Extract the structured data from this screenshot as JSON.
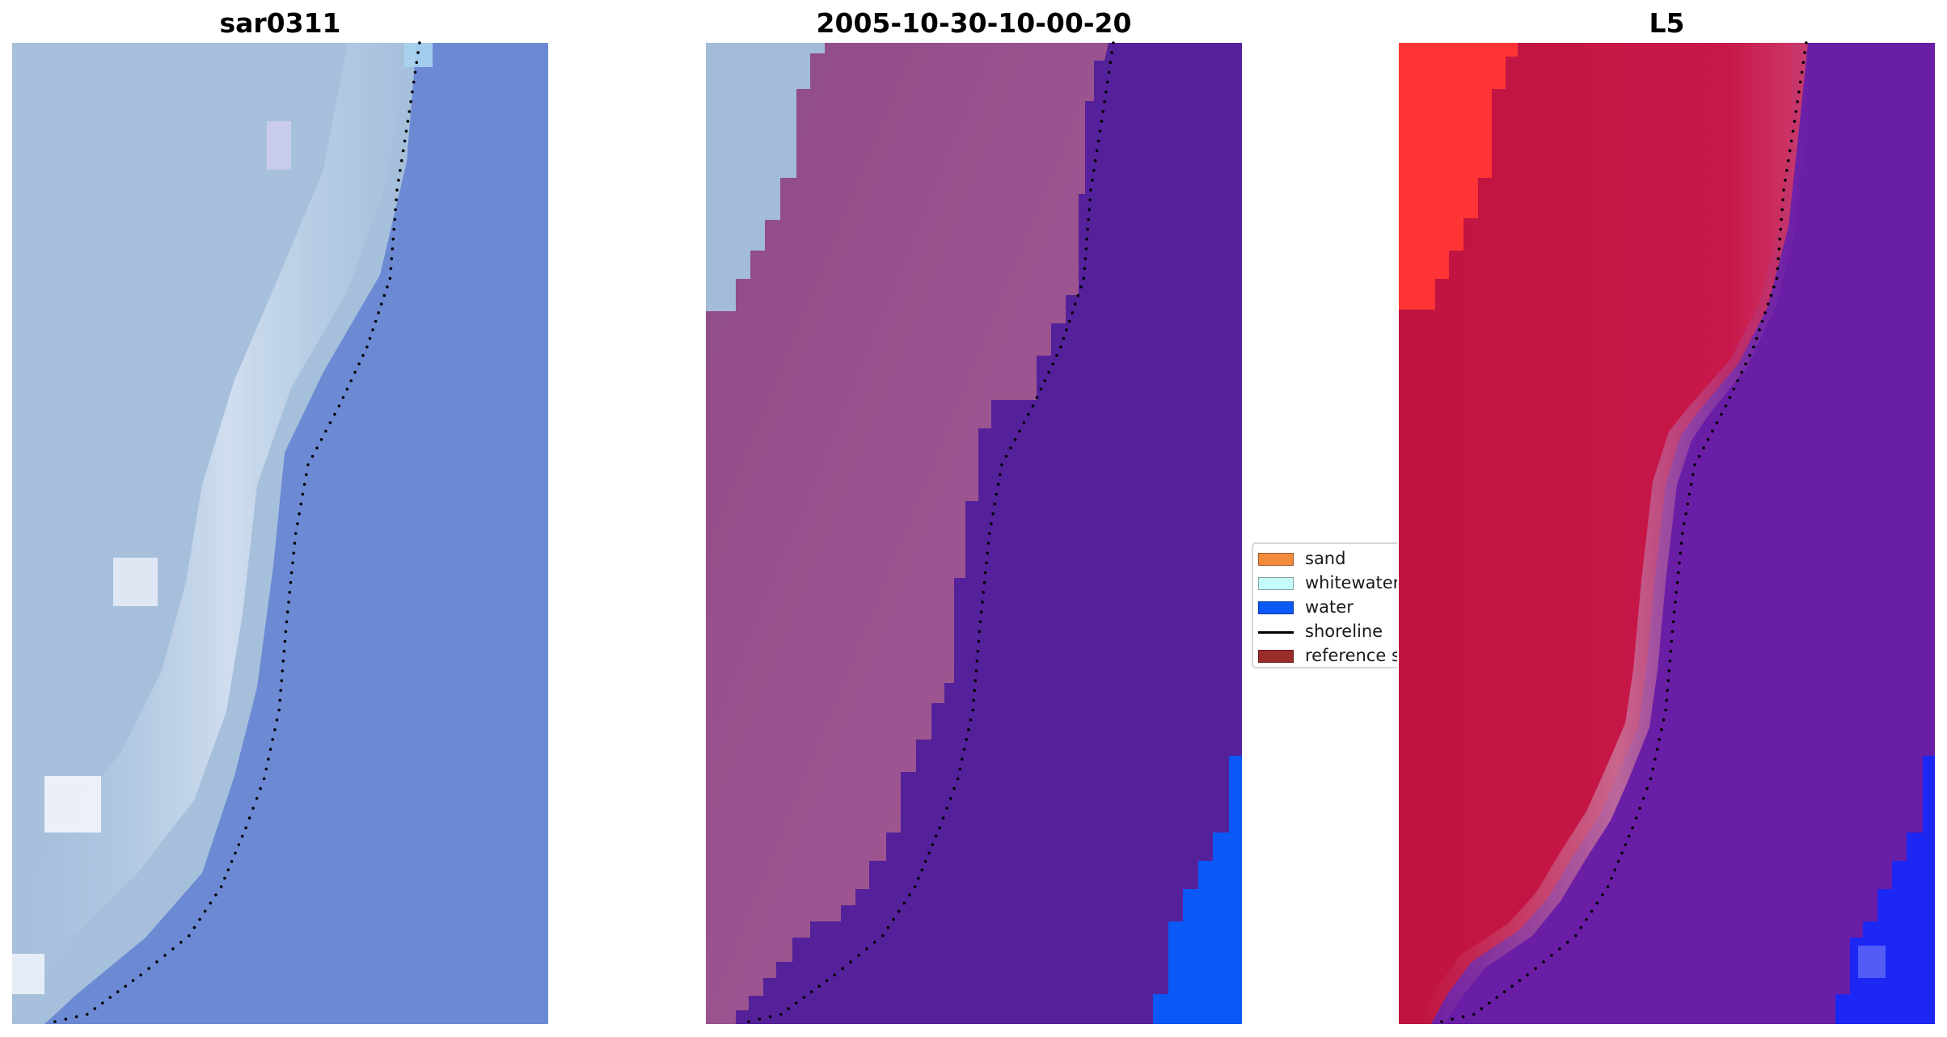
{
  "panels": [
    {
      "title": "sar0311",
      "kind": "rgb-image"
    },
    {
      "title": "2005-10-30-10-00-20",
      "kind": "classified-image"
    },
    {
      "title": "L5",
      "kind": "index-image"
    }
  ],
  "legend": {
    "items": [
      {
        "label": "sand",
        "color": "#f28a3c",
        "style": "patch"
      },
      {
        "label": "whitewater",
        "color": "#c6fbfb",
        "style": "patch"
      },
      {
        "label": "water",
        "color": "#0a58f5",
        "style": "patch"
      },
      {
        "label": "shoreline",
        "color": "#000000",
        "style": "line"
      },
      {
        "label": "reference s",
        "color": "#9b2c2c",
        "style": "patch"
      }
    ]
  },
  "colors": {
    "rgb_sand": "#a6c0dc",
    "rgb_water": "#6c8ad4",
    "rgb_surf": "#dfe8f6",
    "class_land": "#98528c",
    "class_sea": "#55219b",
    "class_topleft": "#a3bcd8",
    "class_water_patch": "#0a58f5",
    "index_land": "#c31545",
    "index_sea": "#6a1ea6",
    "index_bright": "#ff3535",
    "index_water_patch": "#1c27f3",
    "shoreline": "#000000"
  }
}
